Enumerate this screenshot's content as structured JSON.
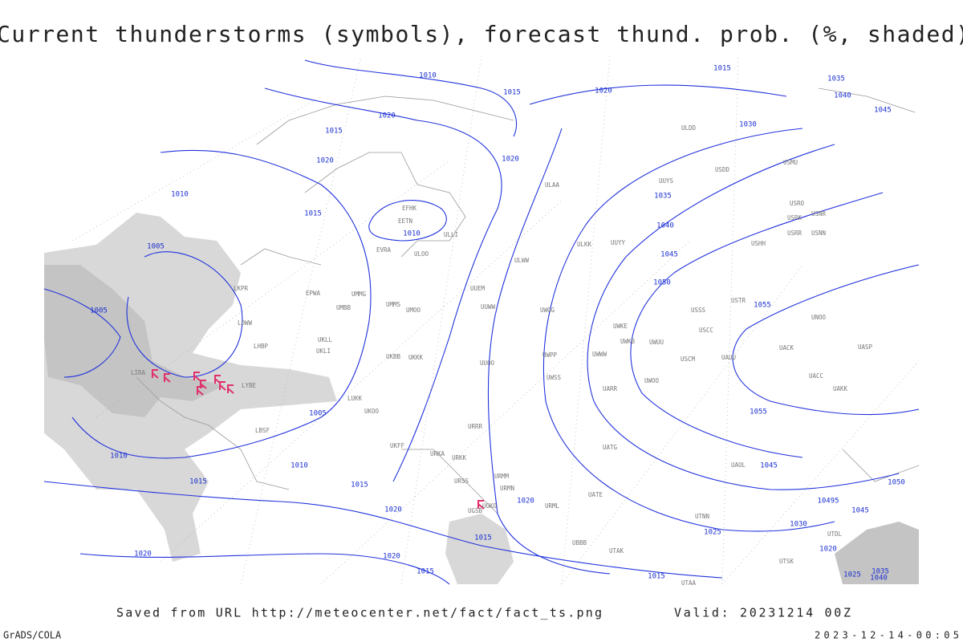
{
  "header": {
    "title": "Current thunderstorms (symbols), forecast thund. prob. (%, shaded)"
  },
  "isobar_labels": [
    "1010",
    "1015",
    "1020",
    "1015",
    "1035",
    "1040",
    "1045",
    "1020",
    "1030",
    "1015",
    "1020",
    "1020",
    "1010",
    "1015",
    "1035",
    "1010",
    "1040",
    "1005",
    "1045",
    "1050",
    "1055",
    "1005",
    "1005",
    "1055",
    "1010",
    "1010",
    "1045",
    "1015",
    "1015",
    "1050",
    "1020",
    "10495",
    "1020",
    "1045",
    "1030",
    "1025",
    "1015",
    "1020",
    "1020",
    "1020",
    "1015",
    "1035",
    "1015",
    "1025",
    "1040"
  ],
  "stations": [
    "EFHK",
    "EETN",
    "EVRA",
    "ULOO",
    "UMMG",
    "UMMS",
    "UMOO",
    "UUEM",
    "UUWW",
    "UKBB",
    "UKKK",
    "UUOO",
    "URRR",
    "URMM",
    "UGSB",
    "UGKO",
    "UBBB",
    "UATE",
    "UACC",
    "UAKK",
    "UASP",
    "UACK",
    "UNOO",
    "USTR",
    "USSS",
    "USCC",
    "USCM",
    "UAUU",
    "UWOO",
    "UWWW",
    "UWKB",
    "UWKE",
    "UWPP",
    "UWSS",
    "UWGG",
    "LIRA",
    "LYBE",
    "LBSF",
    "LKPR",
    "LOWW",
    "LHBP",
    "EPWA",
    "UMBB",
    "UKLL",
    "UKLI",
    "LUKK",
    "UKOO",
    "UKFF",
    "URKA",
    "URKK",
    "URSS",
    "URMN",
    "URML",
    "UUYY",
    "ULLI",
    "ULAA",
    "ULDD",
    "UUYS",
    "USDD",
    "USMU",
    "USRO",
    "USRK",
    "USNR",
    "USRR",
    "USNN",
    "USHH",
    "ULKK",
    "ULWW",
    "UWUU",
    "UARR",
    "UATG",
    "UAOL",
    "UTNN",
    "UTAK",
    "UTAA",
    "UTSK",
    "UTDL"
  ],
  "footer": {
    "source": "Saved from URL http://meteocenter.net/fact/fact_ts.png",
    "valid": "Valid: 20231214 00Z",
    "credit": "GrADS/COLA",
    "timestamp": "2023-12-14-00:05"
  }
}
